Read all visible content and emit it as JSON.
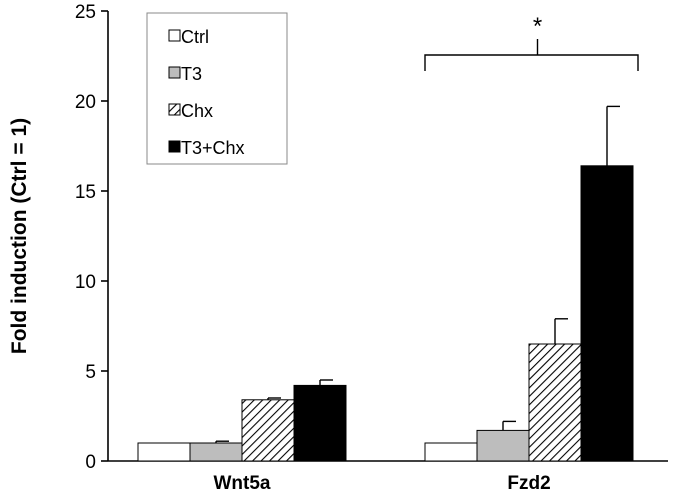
{
  "chart_data": {
    "type": "bar",
    "ylabel": "Fold induction (Ctrl = 1)",
    "xlabel": "",
    "ylim": [
      0,
      25
    ],
    "yticks": [
      0,
      5,
      10,
      15,
      20,
      25
    ],
    "categories": [
      "Wnt5a",
      "Fzd2"
    ],
    "series": [
      {
        "name": "Ctrl",
        "values": [
          1.0,
          1.0
        ],
        "errors": [
          0,
          0
        ],
        "fill": "white"
      },
      {
        "name": "T3",
        "values": [
          1.0,
          1.7
        ],
        "errors": [
          0.1,
          0.5
        ],
        "fill": "gray"
      },
      {
        "name": "Chx",
        "values": [
          3.4,
          6.5
        ],
        "errors": [
          0.1,
          1.4
        ],
        "fill": "hatched"
      },
      {
        "name": "T3+Chx",
        "values": [
          4.2,
          16.4
        ],
        "errors": [
          0.3,
          3.3
        ],
        "fill": "black"
      }
    ],
    "annotations": [
      {
        "text": "*",
        "category": "Fzd2"
      }
    ],
    "legend_position": "top-left",
    "grid": false
  },
  "colors": {
    "Ctrl": "#ffffff",
    "T3": "#bdbdbd",
    "Chx": "hatch",
    "T3+Chx": "#000000",
    "axis": "#000000"
  }
}
